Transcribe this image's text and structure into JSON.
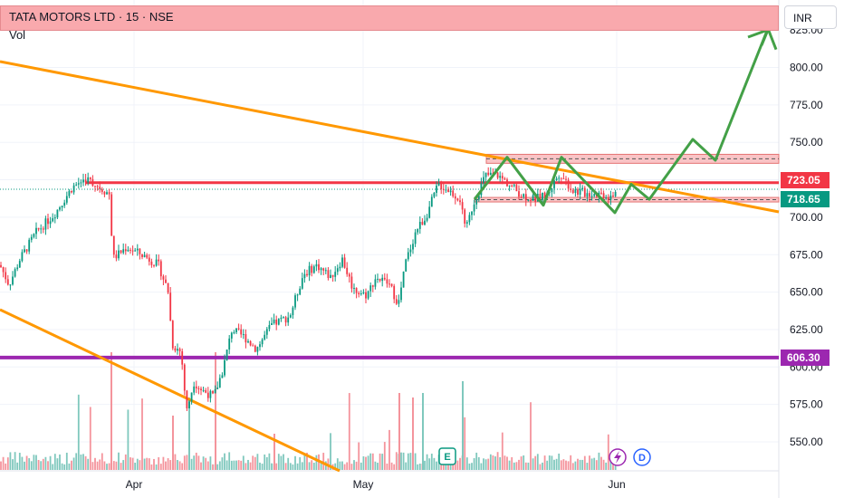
{
  "header": {
    "title": "TATA MOTORS LTD · 15 · NSE",
    "volume_label": "Vol",
    "currency": "INR"
  },
  "price_tags": [
    {
      "value": "723.05",
      "color": "#f23645"
    },
    {
      "value": "718.65",
      "color": "#089981"
    },
    {
      "value": "606.30",
      "color": "#9c27b0"
    }
  ],
  "badges": {
    "earnings": "E",
    "split": "D"
  },
  "chart_data": {
    "type": "candlestick",
    "y_ticks": [
      550,
      575,
      600,
      625,
      650,
      675,
      700,
      725,
      750,
      775,
      800,
      825
    ],
    "y_tick_labels": [
      "550.00",
      "575.00",
      "600.00",
      "625.00",
      "650.00",
      "675.00",
      "700.00",
      "725.00",
      "750.00",
      "775.00",
      "800.00",
      "825.00"
    ],
    "ylim": [
      538,
      838
    ],
    "x_ticks": [
      "Apr",
      "May",
      "Jun"
    ],
    "grid": true,
    "current_price": 718.65,
    "horizontal_levels": [
      {
        "price": 723.05,
        "color": "#f23645"
      },
      {
        "price": 606.3,
        "color": "#9c27b0"
      }
    ],
    "resistance_zone": [
      736,
      742
    ],
    "support_zone": [
      710,
      712
    ],
    "colors": {
      "up": "#089981",
      "down": "#f23645",
      "trendline": "#ff9800",
      "projection": "#43a047"
    },
    "projection_path_prices": [
      712,
      740,
      708,
      740,
      703,
      722,
      712,
      752,
      738,
      826,
      812
    ]
  }
}
